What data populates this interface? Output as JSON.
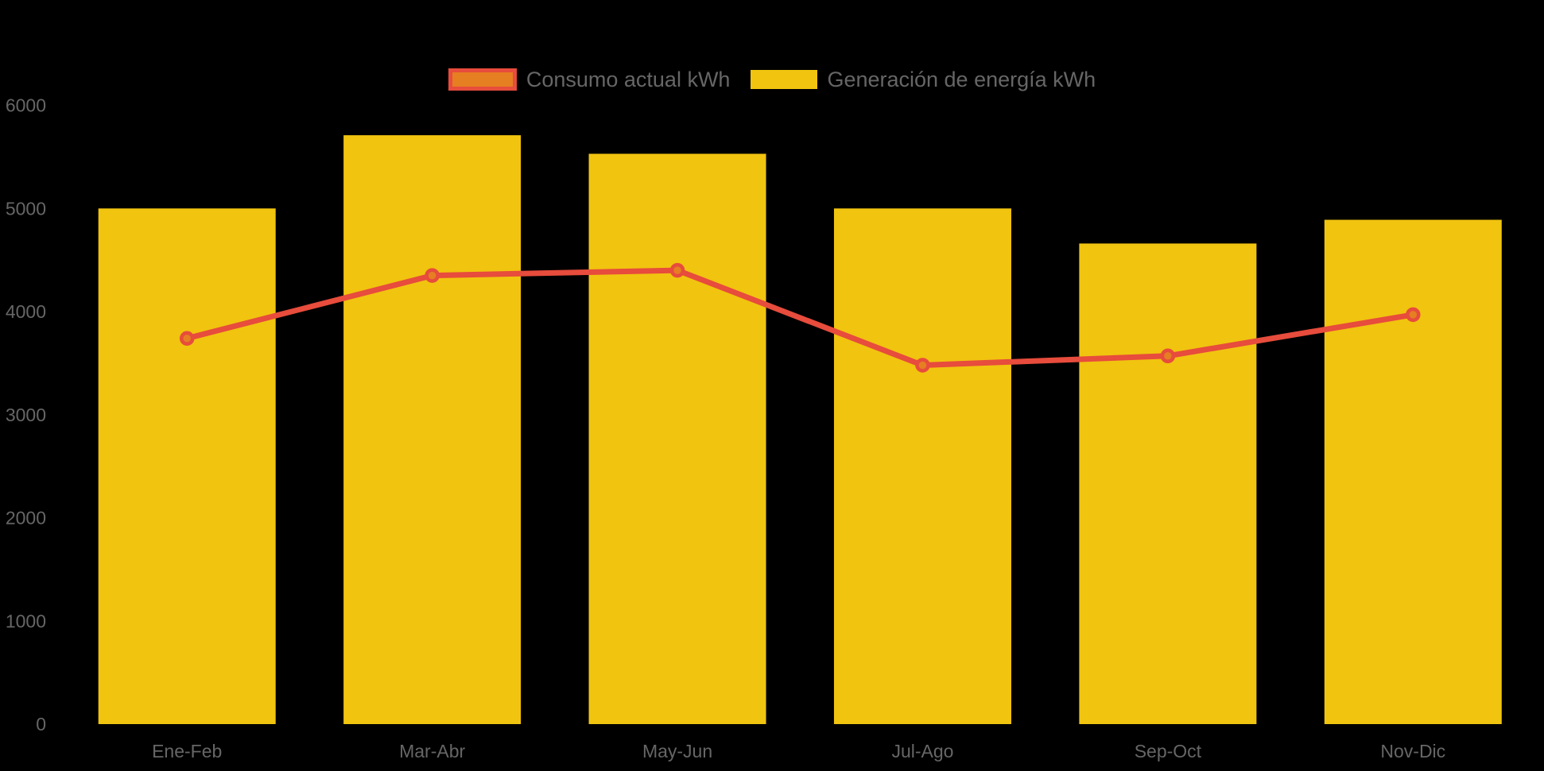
{
  "chart_data": {
    "type": "combo-bar-line",
    "title": "",
    "xlabel": "",
    "ylabel": "",
    "categories": [
      "Ene-Feb",
      "Mar-Abr",
      "May-Jun",
      "Jul-Ago",
      "Sep-Oct",
      "Nov-Dic"
    ],
    "series": [
      {
        "name": "Consumo actual kWh",
        "type": "line",
        "values": [
          3740,
          4350,
          4400,
          3480,
          3570,
          3970
        ],
        "line_color": "#E74C3C",
        "point_fill": "#E67E22",
        "point_border": "#E74C3C"
      },
      {
        "name": "Generación de energía kWh",
        "type": "bar",
        "values": [
          5000,
          5710,
          5530,
          5000,
          4660,
          4890
        ],
        "color": "#F1C40F"
      }
    ],
    "ylim": [
      0,
      6000
    ],
    "y_ticks": [
      0,
      1000,
      2000,
      3000,
      4000,
      5000,
      6000
    ],
    "legend_position": "top-center",
    "grid": "off",
    "background": "#000000",
    "axis_label_color": "#666666"
  }
}
